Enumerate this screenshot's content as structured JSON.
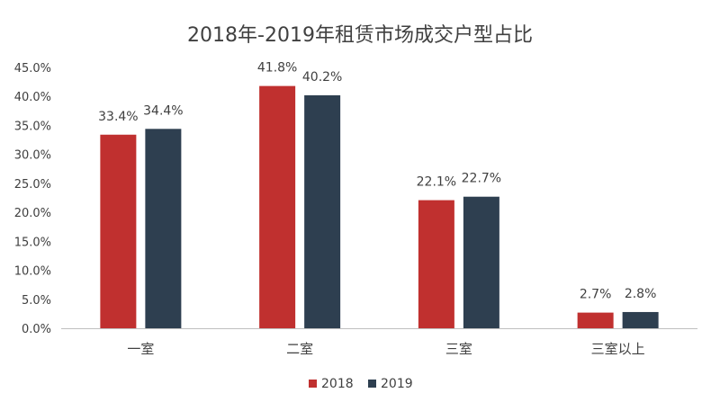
{
  "chart_data": {
    "type": "bar",
    "title": "2018年-2019年租赁市场成交户型占比",
    "categories": [
      "一室",
      "二室",
      "三室",
      "三室以上"
    ],
    "series": [
      {
        "name": "2018",
        "values": [
          33.4,
          41.8,
          22.1,
          2.7
        ],
        "color": "#c0302f"
      },
      {
        "name": "2019",
        "values": [
          34.4,
          40.2,
          22.7,
          2.8
        ],
        "color": "#2e3f50"
      }
    ],
    "value_format": "%",
    "ylim": [
      0,
      45
    ],
    "y_ticks": [
      0,
      5,
      10,
      15,
      20,
      25,
      30,
      35,
      40,
      45
    ],
    "y_tick_labels": [
      "0.0%",
      "5.0%",
      "10.0%",
      "15.0%",
      "20.0%",
      "25.0%",
      "30.0%",
      "35.0%",
      "40.0%",
      "45.0%"
    ],
    "grid": false,
    "legend_position": "bottom-center",
    "axis_color": "#bfbfbf"
  }
}
